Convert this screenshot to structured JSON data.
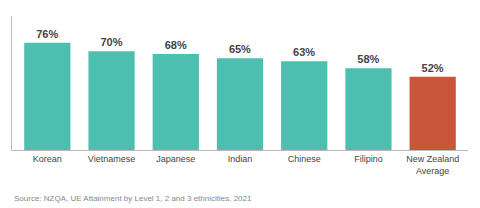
{
  "chart_data": {
    "type": "bar",
    "categories": [
      "Korean",
      "Vietnamese",
      "Japanese",
      "Indian",
      "Chinese",
      "Filipino",
      "New Zealand\nAverage"
    ],
    "values": [
      76,
      70,
      68,
      65,
      63,
      58,
      52
    ],
    "value_labels": [
      "76%",
      "70%",
      "68%",
      "65%",
      "63%",
      "58%",
      "52%"
    ],
    "data_labels": true,
    "colors": [
      "#4DBFB0",
      "#4DBFB0",
      "#4DBFB0",
      "#4DBFB0",
      "#4DBFB0",
      "#4DBFB0",
      "#C9553A"
    ],
    "ylim": [
      0,
      95
    ],
    "grid": false,
    "tick_labels": "x",
    "annotations": [
      "Source: NZQA, UE Attainment by Level 1, 2 and 3 ethnicities, 2021"
    ]
  }
}
